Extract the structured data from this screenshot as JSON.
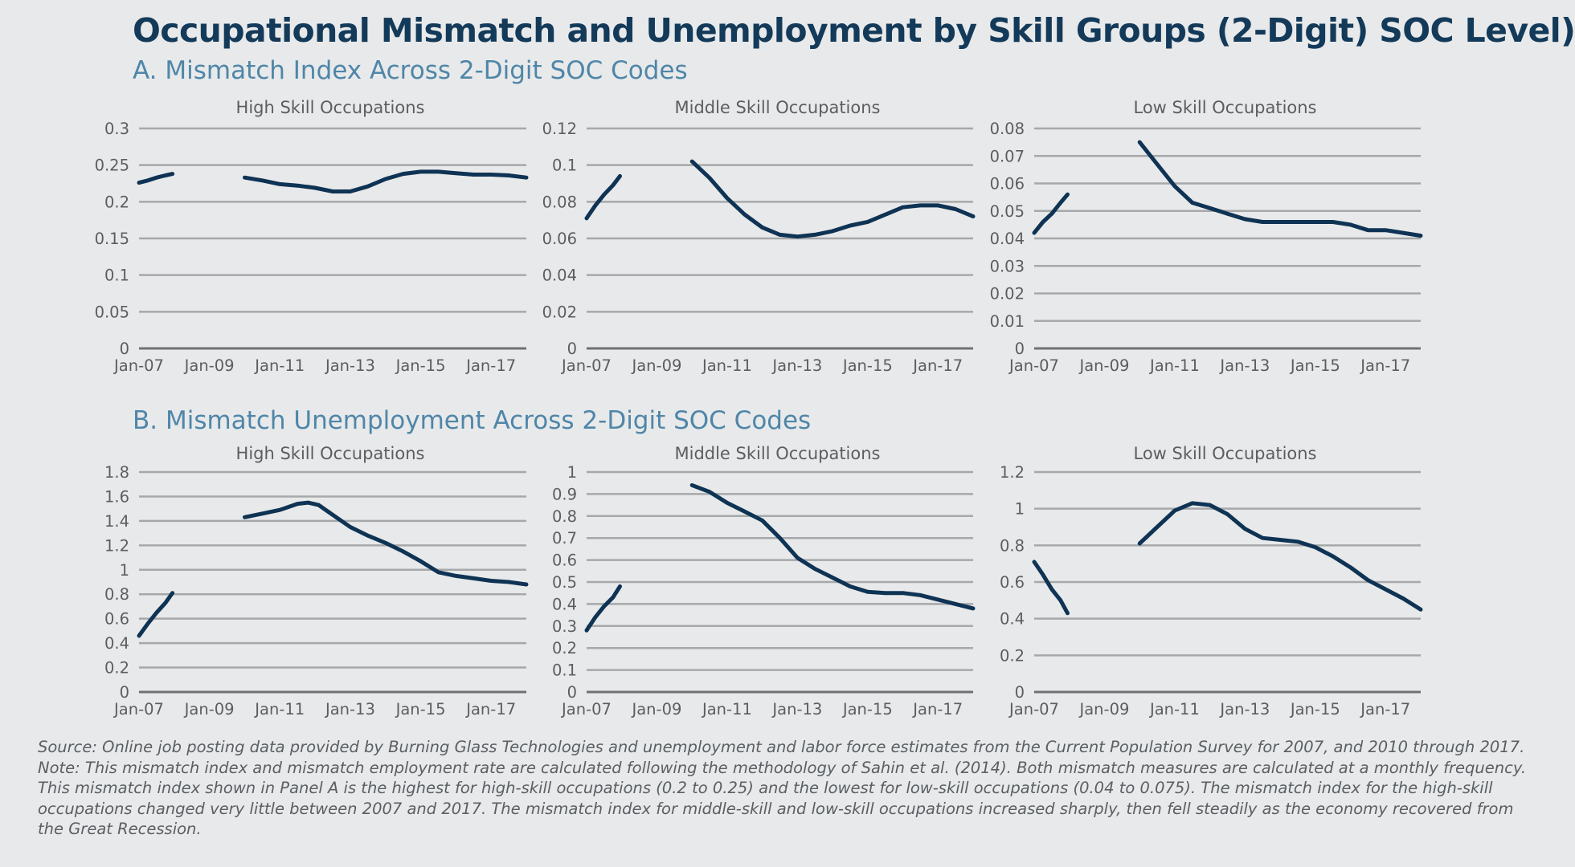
{
  "title": "Occupational Mismatch and Unemployment by Skill Groups (2-Digit) SOC Level)",
  "panel_a_title": "A. Mismatch Index Across 2-Digit SOC Codes",
  "panel_b_title": "B. Mismatch Unemployment Across 2-Digit SOC Codes",
  "notes": {
    "source": "Source: Online job posting data provided by Burning Glass Technologies and unemployment and labor force estimates from the Current Population Survey for 2007, and 2010 through 2017.",
    "note_lines": [
      "Note: This mismatch index and mismatch employment rate are calculated following the methodology of Sahin et al. (2014). Both mismatch measures are calculated at a monthly frequency.",
      "This mismatch index shown in Panel A is the highest for high-skill occupations (0.2 to 0.25) and the lowest for low-skill occupations (0.04 to 0.075). The mismatch index for the high-skill",
      "occupations changed very little between 2007 and 2017. The mismatch index for middle-skill and low-skill occupations increased sharply, then fell steadily as the economy recovered from",
      "the Great Recession."
    ]
  },
  "colors": {
    "line": "#0e3354",
    "grid": "#a6a8aa",
    "axis": "#6f7173",
    "tick_text": "#5b5e61",
    "title": "#143a5a",
    "panel_title": "#4f86a8"
  },
  "chart_data": [
    {
      "panel": "A",
      "type": "line",
      "title": "High Skill Occupations",
      "x_ticks": [
        "Jan-07",
        "Jan-09",
        "Jan-11",
        "Jan-13",
        "Jan-15",
        "Jan-17"
      ],
      "y_ticks": [
        "0",
        "0.05",
        "0.1",
        "0.15",
        "0.2",
        "0.25",
        "0.3"
      ],
      "ylim": [
        0,
        0.3
      ],
      "xlim": [
        2007.0,
        2018.0
      ],
      "grid": true,
      "segments": [
        [
          [
            2007.0,
            0.226
          ],
          [
            2007.25,
            0.229
          ],
          [
            2007.5,
            0.233
          ],
          [
            2007.75,
            0.236
          ],
          [
            2007.95,
            0.238
          ]
        ],
        [
          [
            2010.0,
            0.233
          ],
          [
            2010.5,
            0.229
          ],
          [
            2011.0,
            0.224
          ],
          [
            2011.5,
            0.222
          ],
          [
            2012.0,
            0.219
          ],
          [
            2012.5,
            0.214
          ],
          [
            2013.0,
            0.214
          ],
          [
            2013.5,
            0.221
          ],
          [
            2014.0,
            0.231
          ],
          [
            2014.5,
            0.238
          ],
          [
            2015.0,
            0.241
          ],
          [
            2015.5,
            0.241
          ],
          [
            2016.0,
            0.239
          ],
          [
            2016.5,
            0.237
          ],
          [
            2017.0,
            0.237
          ],
          [
            2017.5,
            0.236
          ],
          [
            2018.0,
            0.233
          ]
        ]
      ]
    },
    {
      "panel": "A",
      "type": "line",
      "title": "Middle Skill Occupations",
      "x_ticks": [
        "Jan-07",
        "Jan-09",
        "Jan-11",
        "Jan-13",
        "Jan-15",
        "Jan-17"
      ],
      "y_ticks": [
        "0",
        "0.02",
        "0.04",
        "0.06",
        "0.08",
        "0.1",
        "0.12"
      ],
      "ylim": [
        0,
        0.12
      ],
      "xlim": [
        2007.0,
        2018.0
      ],
      "grid": true,
      "segments": [
        [
          [
            2007.0,
            0.071
          ],
          [
            2007.25,
            0.078
          ],
          [
            2007.5,
            0.084
          ],
          [
            2007.75,
            0.089
          ],
          [
            2007.95,
            0.094
          ]
        ],
        [
          [
            2010.0,
            0.102
          ],
          [
            2010.5,
            0.093
          ],
          [
            2011.0,
            0.082
          ],
          [
            2011.5,
            0.073
          ],
          [
            2012.0,
            0.066
          ],
          [
            2012.5,
            0.062
          ],
          [
            2013.0,
            0.061
          ],
          [
            2013.5,
            0.062
          ],
          [
            2014.0,
            0.064
          ],
          [
            2014.5,
            0.067
          ],
          [
            2015.0,
            0.069
          ],
          [
            2015.5,
            0.073
          ],
          [
            2016.0,
            0.077
          ],
          [
            2016.5,
            0.078
          ],
          [
            2017.0,
            0.078
          ],
          [
            2017.5,
            0.076
          ],
          [
            2018.0,
            0.072
          ]
        ]
      ]
    },
    {
      "panel": "A",
      "type": "line",
      "title": "Low Skill Occupations",
      "x_ticks": [
        "Jan-07",
        "Jan-09",
        "Jan-11",
        "Jan-13",
        "Jan-15",
        "Jan-17"
      ],
      "y_ticks": [
        "0",
        "0.01",
        "0.02",
        "0.03",
        "0.04",
        "0.05",
        "0.06",
        "0.07",
        "0.08"
      ],
      "ylim": [
        0,
        0.08
      ],
      "xlim": [
        2007.0,
        2018.0
      ],
      "grid": true,
      "segments": [
        [
          [
            2007.0,
            0.042
          ],
          [
            2007.25,
            0.046
          ],
          [
            2007.5,
            0.049
          ],
          [
            2007.75,
            0.053
          ],
          [
            2007.95,
            0.056
          ]
        ],
        [
          [
            2010.0,
            0.075
          ],
          [
            2010.5,
            0.067
          ],
          [
            2011.0,
            0.059
          ],
          [
            2011.5,
            0.053
          ],
          [
            2012.0,
            0.051
          ],
          [
            2012.5,
            0.049
          ],
          [
            2013.0,
            0.047
          ],
          [
            2013.5,
            0.046
          ],
          [
            2014.0,
            0.046
          ],
          [
            2014.5,
            0.046
          ],
          [
            2015.0,
            0.046
          ],
          [
            2015.5,
            0.046
          ],
          [
            2016.0,
            0.045
          ],
          [
            2016.5,
            0.043
          ],
          [
            2017.0,
            0.043
          ],
          [
            2017.5,
            0.042
          ],
          [
            2018.0,
            0.041
          ]
        ]
      ]
    },
    {
      "panel": "B",
      "type": "line",
      "title": "High Skill Occupations",
      "x_ticks": [
        "Jan-07",
        "Jan-09",
        "Jan-11",
        "Jan-13",
        "Jan-15",
        "Jan-17"
      ],
      "y_ticks": [
        "0",
        "0.2",
        "0.4",
        "0.6",
        "0.8",
        "1",
        "1.2",
        "1.4",
        "1.6",
        "1.8"
      ],
      "ylim": [
        0,
        1.8
      ],
      "xlim": [
        2007.0,
        2018.0
      ],
      "grid": true,
      "segments": [
        [
          [
            2007.0,
            0.46
          ],
          [
            2007.25,
            0.56
          ],
          [
            2007.5,
            0.65
          ],
          [
            2007.75,
            0.73
          ],
          [
            2007.95,
            0.81
          ]
        ],
        [
          [
            2010.0,
            1.43
          ],
          [
            2010.5,
            1.46
          ],
          [
            2011.0,
            1.49
          ],
          [
            2011.5,
            1.54
          ],
          [
            2011.8,
            1.55
          ],
          [
            2012.1,
            1.53
          ],
          [
            2012.5,
            1.45
          ],
          [
            2013.0,
            1.35
          ],
          [
            2013.5,
            1.28
          ],
          [
            2014.0,
            1.22
          ],
          [
            2014.5,
            1.15
          ],
          [
            2015.0,
            1.07
          ],
          [
            2015.5,
            0.98
          ],
          [
            2016.0,
            0.95
          ],
          [
            2016.5,
            0.93
          ],
          [
            2017.0,
            0.91
          ],
          [
            2017.5,
            0.9
          ],
          [
            2018.0,
            0.88
          ]
        ]
      ]
    },
    {
      "panel": "B",
      "type": "line",
      "title": "Middle Skill Occupations",
      "x_ticks": [
        "Jan-07",
        "Jan-09",
        "Jan-11",
        "Jan-13",
        "Jan-15",
        "Jan-17"
      ],
      "y_ticks": [
        "0",
        "0.1",
        "0.2",
        "0.3",
        "0.4",
        "0.5",
        "0.6",
        "0.7",
        "0.8",
        "0.9",
        "1"
      ],
      "ylim": [
        0,
        1
      ],
      "xlim": [
        2007.0,
        2018.0
      ],
      "grid": true,
      "segments": [
        [
          [
            2007.0,
            0.28
          ],
          [
            2007.25,
            0.34
          ],
          [
            2007.5,
            0.39
          ],
          [
            2007.75,
            0.43
          ],
          [
            2007.95,
            0.48
          ]
        ],
        [
          [
            2010.0,
            0.94
          ],
          [
            2010.5,
            0.91
          ],
          [
            2011.0,
            0.86
          ],
          [
            2011.5,
            0.82
          ],
          [
            2012.0,
            0.78
          ],
          [
            2012.5,
            0.7
          ],
          [
            2013.0,
            0.61
          ],
          [
            2013.5,
            0.56
          ],
          [
            2014.0,
            0.52
          ],
          [
            2014.5,
            0.48
          ],
          [
            2015.0,
            0.455
          ],
          [
            2015.5,
            0.45
          ],
          [
            2016.0,
            0.45
          ],
          [
            2016.5,
            0.44
          ],
          [
            2017.0,
            0.42
          ],
          [
            2017.5,
            0.4
          ],
          [
            2018.0,
            0.38
          ]
        ]
      ]
    },
    {
      "panel": "B",
      "type": "line",
      "title": "Low Skill Occupations",
      "x_ticks": [
        "Jan-07",
        "Jan-09",
        "Jan-11",
        "Jan-13",
        "Jan-15",
        "Jan-17"
      ],
      "y_ticks": [
        "0",
        "0.2",
        "0.4",
        "0.6",
        "0.8",
        "1",
        "1.2"
      ],
      "ylim": [
        0,
        1.2
      ],
      "xlim": [
        2007.0,
        2018.0
      ],
      "grid": true,
      "segments": [
        [
          [
            2007.0,
            0.71
          ],
          [
            2007.25,
            0.64
          ],
          [
            2007.5,
            0.56
          ],
          [
            2007.75,
            0.5
          ],
          [
            2007.95,
            0.43
          ]
        ],
        [
          [
            2010.0,
            0.81
          ],
          [
            2010.5,
            0.9
          ],
          [
            2011.0,
            0.99
          ],
          [
            2011.5,
            1.03
          ],
          [
            2012.0,
            1.02
          ],
          [
            2012.5,
            0.97
          ],
          [
            2013.0,
            0.89
          ],
          [
            2013.5,
            0.84
          ],
          [
            2014.0,
            0.83
          ],
          [
            2014.5,
            0.82
          ],
          [
            2015.0,
            0.79
          ],
          [
            2015.5,
            0.74
          ],
          [
            2016.0,
            0.68
          ],
          [
            2016.5,
            0.61
          ],
          [
            2017.0,
            0.56
          ],
          [
            2017.5,
            0.51
          ],
          [
            2018.0,
            0.45
          ]
        ]
      ]
    }
  ]
}
